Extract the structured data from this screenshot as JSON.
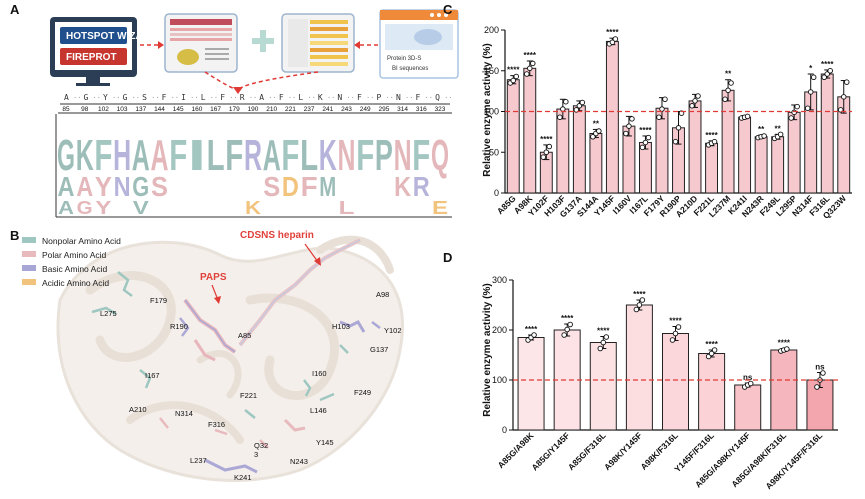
{
  "panels": {
    "a": "A",
    "b": "B",
    "c": "C",
    "d": "D"
  },
  "panelA": {
    "tool_names": [
      "HOTSPOT WIZARD",
      "FIREPROT"
    ],
    "seq_label": "Protein 3D-S",
    "seq_sub": "BI sequences",
    "consensus": [
      "A",
      "G",
      "Y",
      "G",
      "S",
      "F",
      "I",
      "L",
      "F",
      "R",
      "A",
      "F",
      "L",
      "K",
      "N",
      "F",
      "P",
      "N",
      "F",
      "Q"
    ],
    "positions": [
      "85",
      "98",
      "102",
      "103",
      "137",
      "144",
      "145",
      "160",
      "167",
      "179",
      "190",
      "210",
      "221",
      "237",
      "241",
      "243",
      "249",
      "295",
      "314",
      "316",
      "323"
    ],
    "logo_top": [
      "G",
      "K",
      "F",
      "H",
      "A",
      "A",
      "F",
      "I",
      "L",
      "F",
      "R",
      "A",
      "F",
      "L",
      "K",
      "N",
      "F",
      "P",
      "N",
      "F",
      "Q"
    ],
    "logo_mid": [
      "A",
      "A",
      "Y",
      "N",
      "G",
      "S",
      "",
      "",
      "",
      "",
      "",
      "S",
      "D",
      "F",
      "M",
      "",
      "",
      "",
      "K",
      "R",
      ""
    ],
    "logo_low": [
      "A",
      "G",
      "Y",
      "",
      "V",
      "",
      "",
      "",
      "",
      "",
      "K",
      "",
      "",
      "",
      "",
      "L",
      "",
      "",
      "",
      "",
      "E"
    ]
  },
  "panelB": {
    "legend": [
      {
        "label": "Nonpolar Amino Acid",
        "color": "#9fc7c1"
      },
      {
        "label": "Polar Amino Acid",
        "color": "#e8b9bd"
      },
      {
        "label": "Basic Amino Acid",
        "color": "#a8a6d4"
      },
      {
        "label": "Acidic Amino Acid",
        "color": "#f2c37c"
      }
    ],
    "ligand_heparin": "CDSNS heparin",
    "ligand_paps": "PAPS",
    "residues": [
      "A98",
      "Y102",
      "H103",
      "G137",
      "F179",
      "L275",
      "R190",
      "A85",
      "I167",
      "I160",
      "F249",
      "A210",
      "N314",
      "F221",
      "L146",
      "F316",
      "Y145",
      "Q32\n3",
      "N243",
      "L237",
      "K241"
    ]
  },
  "chart_data": [
    {
      "type": "bar",
      "title": "",
      "xlabel": "",
      "ylabel": "Relative enzyme activity (%)",
      "ylim": [
        0,
        200
      ],
      "yticks": [
        0,
        50,
        100,
        150,
        200
      ],
      "reference_line": 100,
      "categories": [
        "A85G",
        "A98K",
        "Y102F",
        "H103F",
        "G137A",
        "S144A",
        "Y145F",
        "I160V",
        "I167L",
        "F179Y",
        "R190P",
        "A210D",
        "F221L",
        "L237M",
        "K241I",
        "N243R",
        "F249L",
        "L295P",
        "N314F",
        "F316L",
        "Q323W"
      ],
      "values": [
        139,
        153,
        50,
        103,
        107,
        73,
        186,
        82,
        62,
        104,
        80,
        113,
        61,
        126,
        93,
        69,
        69,
        99,
        124,
        146,
        118
      ],
      "errors": [
        5,
        9,
        9,
        12,
        6,
        5,
        4,
        12,
        8,
        13,
        20,
        8,
        3,
        13,
        2,
        2,
        3,
        9,
        22,
        5,
        20
      ],
      "points": [
        [
          135,
          138,
          143
        ],
        [
          146,
          153,
          159
        ],
        [
          44,
          50,
          57
        ],
        [
          93,
          103,
          112
        ],
        [
          102,
          107,
          111
        ],
        [
          69,
          73,
          76
        ],
        [
          183,
          185,
          189
        ],
        [
          73,
          82,
          91
        ],
        [
          56,
          62,
          68
        ],
        [
          93,
          103,
          115
        ],
        [
          63,
          80,
          98
        ],
        [
          107,
          113,
          119
        ],
        [
          59,
          61,
          63
        ],
        [
          115,
          126,
          135
        ],
        [
          92,
          93,
          94
        ],
        [
          68,
          69,
          70
        ],
        [
          67,
          69,
          72
        ],
        [
          92,
          99,
          106
        ],
        [
          104,
          124,
          142
        ],
        [
          142,
          146,
          150
        ],
        [
          102,
          118,
          136
        ]
      ],
      "significance": [
        "****",
        "****",
        "****",
        "",
        "",
        "**",
        "****",
        "",
        "****",
        "",
        "",
        "",
        "****",
        "**",
        "",
        "**",
        "**",
        "",
        "*",
        "****",
        ""
      ]
    },
    {
      "type": "bar",
      "title": "",
      "xlabel": "",
      "ylabel": "Relative enzyme activity (%)",
      "ylim": [
        0,
        300
      ],
      "yticks": [
        0,
        100,
        200,
        300
      ],
      "reference_line": 100,
      "categories": [
        "A85G/A98K",
        "A85G/Y145F",
        "A85G/F316L",
        "A98K/Y145F",
        "A98K/F316L",
        "Y145F/F316L",
        "A85G/A98K/Y145F",
        "A85G/A98K/F316L",
        "A98K/Y145F/F316L"
      ],
      "values": [
        185,
        200,
        175,
        250,
        193,
        153,
        90,
        160,
        100
      ],
      "errors": [
        5,
        12,
        12,
        10,
        14,
        7,
        4,
        3,
        15
      ],
      "points": [
        [
          180,
          185,
          190
        ],
        [
          190,
          201,
          211
        ],
        [
          163,
          175,
          186
        ],
        [
          241,
          250,
          260
        ],
        [
          180,
          193,
          206
        ],
        [
          147,
          153,
          160
        ],
        [
          86,
          90,
          93
        ],
        [
          158,
          160,
          162
        ],
        [
          86,
          100,
          114
        ]
      ],
      "significance": [
        "****",
        "****",
        "****",
        "****",
        "****",
        "****",
        "ns",
        "****",
        "ns"
      ]
    }
  ]
}
